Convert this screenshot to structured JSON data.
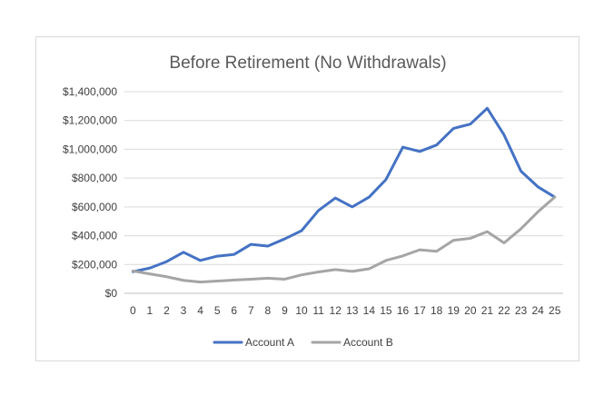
{
  "chart_data": {
    "type": "line",
    "title": "Before Retirement (No Withdrawals)",
    "xlabel": "",
    "ylabel": "",
    "x": [
      0,
      1,
      2,
      3,
      4,
      5,
      6,
      7,
      8,
      9,
      10,
      11,
      12,
      13,
      14,
      15,
      16,
      17,
      18,
      19,
      20,
      21,
      22,
      23,
      24,
      25
    ],
    "ylim": [
      0,
      1400000
    ],
    "yticks": [
      0,
      200000,
      400000,
      600000,
      800000,
      1000000,
      1200000,
      1400000
    ],
    "ytick_labels": [
      "$0",
      "$200,000",
      "$400,000",
      "$600,000",
      "$800,000",
      "$1,000,000",
      "$1,200,000",
      "$1,400,000"
    ],
    "grid": true,
    "legend_position": "bottom",
    "series": [
      {
        "name": "Account A",
        "color": "#4472c4",
        "values": [
          150000,
          175000,
          220000,
          285000,
          228000,
          258000,
          270000,
          340000,
          328000,
          378000,
          435000,
          575000,
          662000,
          600000,
          668000,
          790000,
          1015000,
          985000,
          1030000,
          1145000,
          1175000,
          1285000,
          1100000,
          848000,
          740000,
          668000
        ]
      },
      {
        "name": "Account B",
        "color": "#a5a5a5",
        "values": [
          155000,
          135000,
          115000,
          90000,
          78000,
          85000,
          92000,
          98000,
          105000,
          98000,
          128000,
          148000,
          165000,
          152000,
          170000,
          228000,
          260000,
          302000,
          292000,
          368000,
          382000,
          428000,
          350000,
          448000,
          565000,
          668000
        ]
      }
    ]
  }
}
